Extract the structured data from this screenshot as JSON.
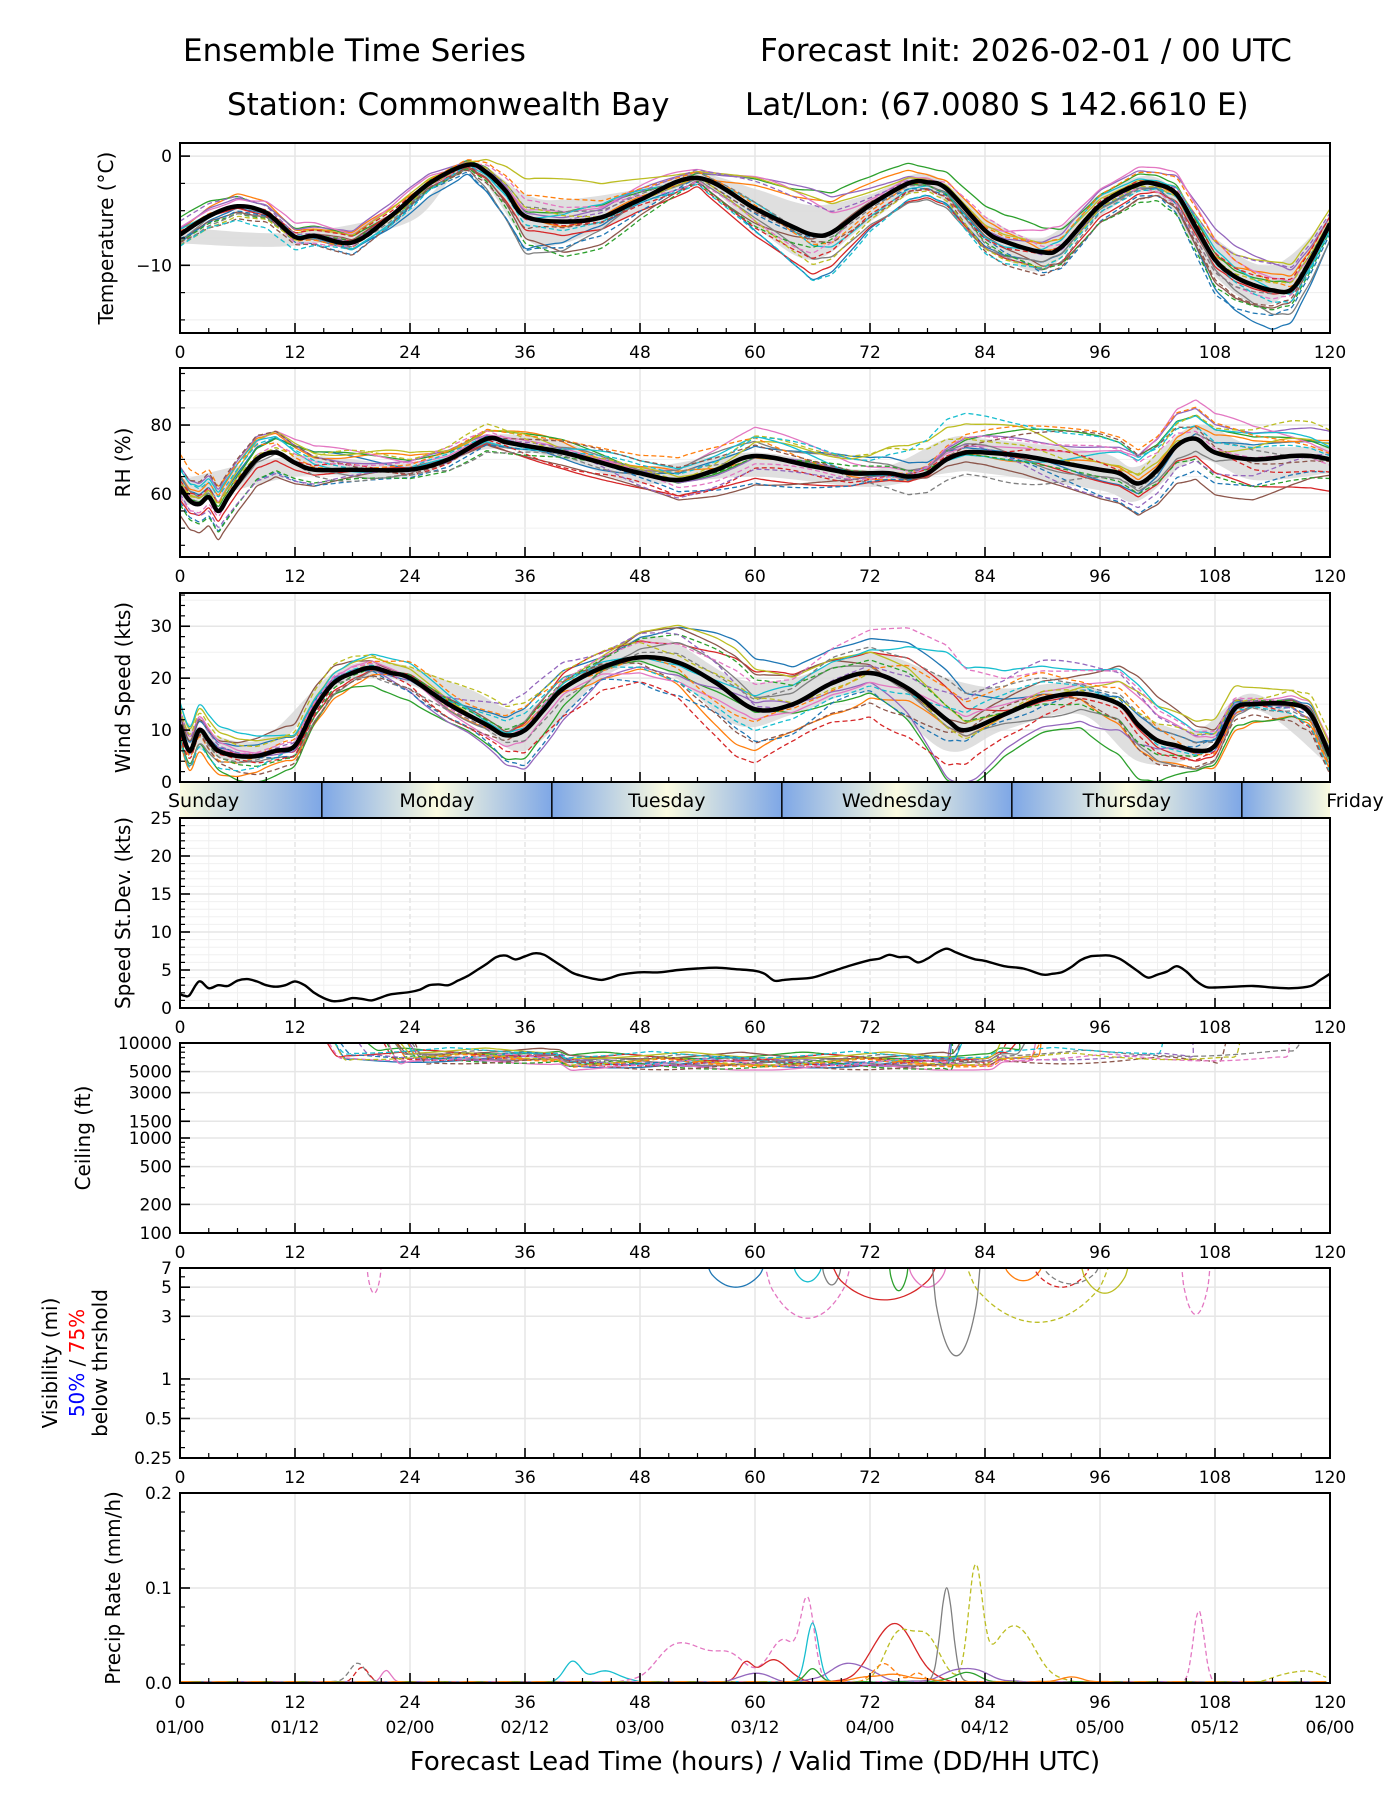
{
  "header": {
    "title": "Ensemble Time Series",
    "init": "Forecast Init: 2026-02-01 / 00 UTC",
    "station": "Station: Commonwealth Bay",
    "latlon": "Lat/Lon: (67.0080 S 142.6610 E)"
  },
  "colors": {
    "mean": "#000000",
    "spread": "#d9d9d9",
    "grid": "#e6e6e6",
    "members": [
      "#1f77b4",
      "#ff7f0e",
      "#2ca02c",
      "#d62728",
      "#9467bd",
      "#8c564b",
      "#e377c2",
      "#7f7f7f",
      "#bcbd22",
      "#17becf"
    ],
    "vis_50": "#0000ff",
    "vis_75": "#ff0000",
    "day_edge": "#7ea7e6",
    "day_mid": "#fbfbe0"
  },
  "chart_data": [
    {
      "id": "temperature",
      "type": "line",
      "ylabel": "Temperature (°C)",
      "ylim": [
        -16.2,
        1.2
      ],
      "yticks": [
        0,
        -10
      ],
      "ytick_labels": [
        "0",
        "−10"
      ],
      "xlim": [
        0,
        120
      ],
      "xticks": [
        0,
        12,
        24,
        36,
        48,
        60,
        72,
        84,
        96,
        108,
        120
      ],
      "xtick_labels": [
        "0",
        "12",
        "24",
        "36",
        "48",
        "60",
        "72",
        "84",
        "96",
        "108",
        "120"
      ],
      "grid": true,
      "mean": {
        "x": [
          0,
          3,
          6,
          9,
          12,
          14,
          18,
          22,
          26,
          30,
          32,
          34,
          36,
          40,
          44,
          48,
          54,
          60,
          64,
          66,
          68,
          72,
          76,
          78,
          80,
          84,
          86,
          90,
          92,
          96,
          100,
          102,
          104,
          106,
          108,
          110,
          112,
          114,
          116,
          118,
          120
        ],
        "y": [
          -7.2,
          -5.5,
          -4.6,
          -5.2,
          -7.4,
          -7.3,
          -7.9,
          -5.5,
          -2.5,
          -0.8,
          -1.5,
          -3.2,
          -5.5,
          -6.0,
          -5.6,
          -4.0,
          -2.0,
          -4.8,
          -6.5,
          -7.2,
          -7.0,
          -4.5,
          -2.5,
          -2.4,
          -3.0,
          -6.8,
          -7.8,
          -8.8,
          -8.3,
          -4.5,
          -2.6,
          -2.6,
          -3.5,
          -6.5,
          -9.5,
          -11.0,
          -11.8,
          -12.3,
          -12.2,
          -9.5,
          -6.2
        ]
      },
      "spread": {
        "x": [
          0,
          12,
          24,
          30,
          36,
          40,
          48,
          54,
          60,
          66,
          72,
          78,
          84,
          90,
          96,
          102,
          108,
          114,
          120
        ],
        "upper": [
          -6.5,
          -7.0,
          -4.8,
          -0.5,
          -3.5,
          -4.0,
          -3.0,
          -1.6,
          -3.0,
          -4.5,
          -3.5,
          -1.6,
          -5.5,
          -7.5,
          -3.5,
          -2.0,
          -7.5,
          -10.0,
          -5.5
        ],
        "lower": [
          -8.0,
          -8.2,
          -6.0,
          -1.2,
          -7.5,
          -8.0,
          -5.0,
          -2.5,
          -6.5,
          -9.5,
          -6.0,
          -3.2,
          -8.0,
          -10.5,
          -5.5,
          -3.5,
          -11.0,
          -13.5,
          -7.0
        ]
      },
      "members_summary": "approx. 20 ensemble members (solid and dashed), ranging from about -15.5 to 0.5 °C"
    },
    {
      "id": "rh",
      "type": "line",
      "ylabel": "RH (%)",
      "ylim": [
        41.6,
        96.6
      ],
      "yticks": [
        60,
        80
      ],
      "ytick_labels": [
        "60",
        "80"
      ],
      "xlim": [
        0,
        120
      ],
      "xticks": [
        0,
        12,
        24,
        36,
        48,
        60,
        72,
        84,
        96,
        108,
        120
      ],
      "xtick_labels": [
        "0",
        "12",
        "24",
        "36",
        "48",
        "60",
        "72",
        "84",
        "96",
        "108",
        "120"
      ],
      "grid": true,
      "mean": {
        "x": [
          0,
          1,
          2,
          3,
          4,
          5,
          6,
          8,
          10,
          12,
          14,
          18,
          24,
          28,
          32,
          34,
          36,
          40,
          44,
          48,
          52,
          56,
          60,
          66,
          70,
          72,
          74,
          76,
          78,
          80,
          82,
          84,
          88,
          92,
          96,
          98,
          100,
          102,
          104,
          106,
          108,
          112,
          116,
          118,
          120
        ],
        "y": [
          62,
          58,
          57,
          59,
          55,
          59,
          63,
          70,
          72,
          69,
          67,
          67,
          67,
          70,
          76,
          75,
          74,
          72,
          69,
          66,
          64,
          67,
          71,
          68,
          66,
          66,
          66,
          65,
          66,
          70,
          72,
          72,
          71,
          69,
          67,
          66,
          63,
          67,
          74,
          76,
          72,
          70,
          71,
          71,
          70
        ]
      },
      "spread": {
        "x": [
          0,
          12,
          24,
          32,
          40,
          48,
          60,
          72,
          80,
          84,
          96,
          100,
          106,
          112,
          120
        ],
        "upper": [
          64,
          71,
          69,
          77,
          75,
          68,
          72,
          67,
          76,
          76,
          72,
          68,
          80,
          74,
          74
        ],
        "lower": [
          56,
          65,
          65,
          73,
          70,
          63,
          65,
          62,
          66,
          66,
          61,
          58,
          70,
          64,
          66
        ]
      },
      "members_summary": "approx. 20 ensemble members ranging from about 45 to 96 %"
    },
    {
      "id": "wind_speed",
      "type": "line",
      "ylabel": "Wind Speed (kts)",
      "ylim": [
        0,
        36.4
      ],
      "yticks": [
        0,
        10,
        20,
        30
      ],
      "ytick_labels": [
        "0",
        "10",
        "20",
        "30"
      ],
      "xlim": [
        0,
        120
      ],
      "grid": true,
      "mean": {
        "x": [
          0,
          1,
          2,
          3,
          4,
          6,
          8,
          10,
          12,
          14,
          16,
          18,
          20,
          22,
          24,
          28,
          32,
          34,
          36,
          38,
          40,
          44,
          48,
          52,
          56,
          60,
          64,
          68,
          72,
          76,
          80,
          82,
          86,
          90,
          94,
          98,
          100,
          102,
          104,
          106,
          108,
          110,
          112,
          116,
          118,
          120
        ],
        "y": [
          11,
          6,
          10,
          8,
          6,
          5,
          5,
          6,
          7,
          14,
          19,
          21,
          22,
          21,
          20,
          15,
          11,
          9,
          10,
          14,
          18,
          22,
          24,
          23,
          19,
          14,
          15,
          19,
          21,
          18,
          12,
          10,
          13,
          16,
          17,
          15,
          11,
          8,
          7,
          6,
          7,
          14,
          15,
          15,
          13,
          5
        ]
      },
      "spread": {
        "x": [
          0,
          8,
          16,
          22,
          30,
          36,
          44,
          50,
          58,
          64,
          72,
          80,
          86,
          94,
          100,
          106,
          112,
          120
        ],
        "upper": [
          12,
          8,
          21,
          23,
          18,
          14,
          24,
          28,
          20,
          20,
          25,
          20,
          18,
          19,
          13,
          10,
          17,
          7
        ],
        "lower": [
          8,
          4,
          18,
          20,
          13,
          6,
          20,
          22,
          11,
          13,
          17,
          6,
          10,
          13,
          4,
          5,
          14,
          3
        ]
      },
      "members_summary": "approx. 20 ensemble members ranging from 0 to about 35 kts"
    },
    {
      "id": "day_bar",
      "type": "table",
      "days": [
        {
          "label": "Sunday",
          "start": 0,
          "end": 14.8
        },
        {
          "label": "Monday",
          "start": 14.8,
          "end": 38.8
        },
        {
          "label": "Tuesday",
          "start": 38.8,
          "end": 62.8
        },
        {
          "label": "Wednesday",
          "start": 62.8,
          "end": 86.8
        },
        {
          "label": "Thursday",
          "start": 86.8,
          "end": 110.8
        },
        {
          "label": "Friday",
          "start": 110.8,
          "end": 120
        }
      ]
    },
    {
      "id": "speed_stdev",
      "type": "line",
      "ylabel": "Speed St.Dev. (kts)",
      "ylim": [
        0,
        25
      ],
      "yticks": [
        0,
        5,
        10,
        15,
        20,
        25
      ],
      "ytick_labels": [
        "0",
        "5",
        "10",
        "15",
        "20",
        "25"
      ],
      "xlim": [
        0,
        120
      ],
      "xticks": [
        0,
        12,
        24,
        36,
        48,
        60,
        72,
        84,
        96,
        108,
        120
      ],
      "xtick_labels": [
        "0",
        "12",
        "24",
        "36",
        "48",
        "60",
        "72",
        "84",
        "96",
        "108",
        "120"
      ],
      "grid": true,
      "values": {
        "x": [
          0,
          0.5,
          1,
          2,
          3,
          4,
          5,
          6,
          7,
          8,
          9,
          10,
          11,
          12,
          13,
          14,
          15,
          16,
          17,
          18,
          19,
          20,
          21,
          22,
          24,
          25,
          26,
          27,
          28,
          29,
          30,
          31,
          32,
          33,
          34,
          35,
          36,
          37,
          38,
          39,
          40,
          41,
          42,
          43,
          44,
          45,
          46,
          48,
          50,
          52,
          54,
          56,
          58,
          60,
          61,
          62,
          63,
          64,
          66,
          68,
          70,
          72,
          73,
          74,
          75,
          76,
          77,
          78,
          79,
          80,
          81,
          82,
          83,
          84,
          86,
          88,
          90,
          91,
          92,
          93,
          94,
          95,
          96,
          97,
          98,
          99,
          100,
          101,
          102,
          103,
          104,
          105,
          106,
          107,
          108,
          110,
          112,
          114,
          116,
          118,
          119,
          120
        ],
        "y": [
          1.8,
          1.6,
          1.7,
          3.5,
          2.6,
          3.0,
          2.9,
          3.6,
          3.8,
          3.5,
          3.0,
          2.8,
          3.0,
          3.5,
          3.0,
          2.0,
          1.3,
          0.9,
          1.0,
          1.3,
          1.2,
          1.0,
          1.4,
          1.8,
          2.1,
          2.4,
          3.0,
          3.1,
          3.0,
          3.6,
          4.2,
          5.0,
          5.8,
          6.7,
          6.9,
          6.4,
          6.8,
          7.2,
          7.0,
          6.2,
          5.4,
          4.6,
          4.2,
          3.9,
          3.7,
          4.0,
          4.4,
          4.7,
          4.7,
          5.0,
          5.2,
          5.3,
          5.1,
          4.9,
          4.5,
          3.6,
          3.7,
          3.8,
          4.0,
          4.8,
          5.6,
          6.3,
          6.5,
          7.0,
          6.7,
          6.7,
          6.0,
          6.5,
          7.3,
          7.8,
          7.3,
          6.8,
          6.4,
          6.2,
          5.5,
          5.2,
          4.4,
          4.5,
          4.7,
          5.4,
          6.3,
          6.8,
          6.9,
          6.9,
          6.5,
          5.7,
          4.8,
          4.0,
          4.4,
          4.8,
          5.5,
          4.8,
          3.6,
          2.8,
          2.7,
          2.8,
          2.9,
          2.7,
          2.6,
          2.9,
          3.7,
          4.5
        ]
      }
    },
    {
      "id": "ceiling",
      "type": "line",
      "ylabel": "Ceiling (ft)",
      "yscale": "log",
      "ylim": [
        100,
        10000
      ],
      "yticks": [
        100,
        200,
        500,
        1000,
        1500,
        3000,
        5000,
        10000
      ],
      "ytick_labels": [
        "100",
        "200",
        "500",
        "1000",
        "1500",
        "3000",
        "5000",
        "10000"
      ],
      "xlim": [
        0,
        120
      ],
      "xticks": [
        0,
        12,
        24,
        36,
        48,
        60,
        72,
        84,
        96,
        108,
        120
      ],
      "xtick_labels": [
        "0",
        "12",
        "24",
        "36",
        "48",
        "60",
        "72",
        "84",
        "96",
        "108",
        "120"
      ],
      "grid": true,
      "members_summary": "members mostly between about 5000 and 10000 ft from hour 15 onward; no values below 5000 ft"
    },
    {
      "id": "visibility",
      "type": "line",
      "ylabel_parts": [
        "Visibility (mi)",
        "50%",
        " / ",
        "75%",
        "below thrshold"
      ],
      "yscale": "log",
      "ylim": [
        0.25,
        7
      ],
      "yticks": [
        0.25,
        0.5,
        1,
        3,
        5,
        7
      ],
      "ytick_labels": [
        "0.25",
        "0.5",
        "1",
        "3",
        "5",
        "7"
      ],
      "xlim": [
        0,
        120
      ],
      "xticks": [
        0,
        12,
        24,
        36,
        48,
        60,
        72,
        84,
        96,
        108,
        120
      ],
      "xtick_labels": [
        "0",
        "12",
        "24",
        "36",
        "48",
        "60",
        "72",
        "84",
        "96",
        "108",
        "120"
      ],
      "grid": true,
      "members_summary": "members dip below 7 mi around hours 20, 55–97 and 105–107; lowest about 1.5 mi near hour 80"
    },
    {
      "id": "precip_rate",
      "type": "line",
      "ylabel": "Precip Rate (mm/h)",
      "ylim": [
        0,
        0.2
      ],
      "yticks": [
        0.0,
        0.1,
        0.2
      ],
      "ytick_labels": [
        "0.0",
        "0.1",
        "0.2"
      ],
      "xlim": [
        0,
        120
      ],
      "xticks": [
        0,
        12,
        24,
        36,
        48,
        60,
        72,
        84,
        96,
        108,
        120
      ],
      "xtick_labels": [
        "0",
        "12",
        "24",
        "36",
        "48",
        "60",
        "72",
        "84",
        "96",
        "108",
        "120"
      ],
      "xtick_labels2": [
        "01/00",
        "01/12",
        "02/00",
        "02/12",
        "03/00",
        "03/12",
        "04/00",
        "04/12",
        "05/00",
        "05/12",
        "06/00"
      ],
      "xlabel": "Forecast Lead Time (hours) / Valid Time (DD/HH UTC)",
      "grid": true,
      "members_summary": "mostly near 0; peaks about 0.115 (hour 83), 0.10 (hour 80), 0.08 (hour 66 and 106), 0.065 (hour 75)"
    }
  ]
}
